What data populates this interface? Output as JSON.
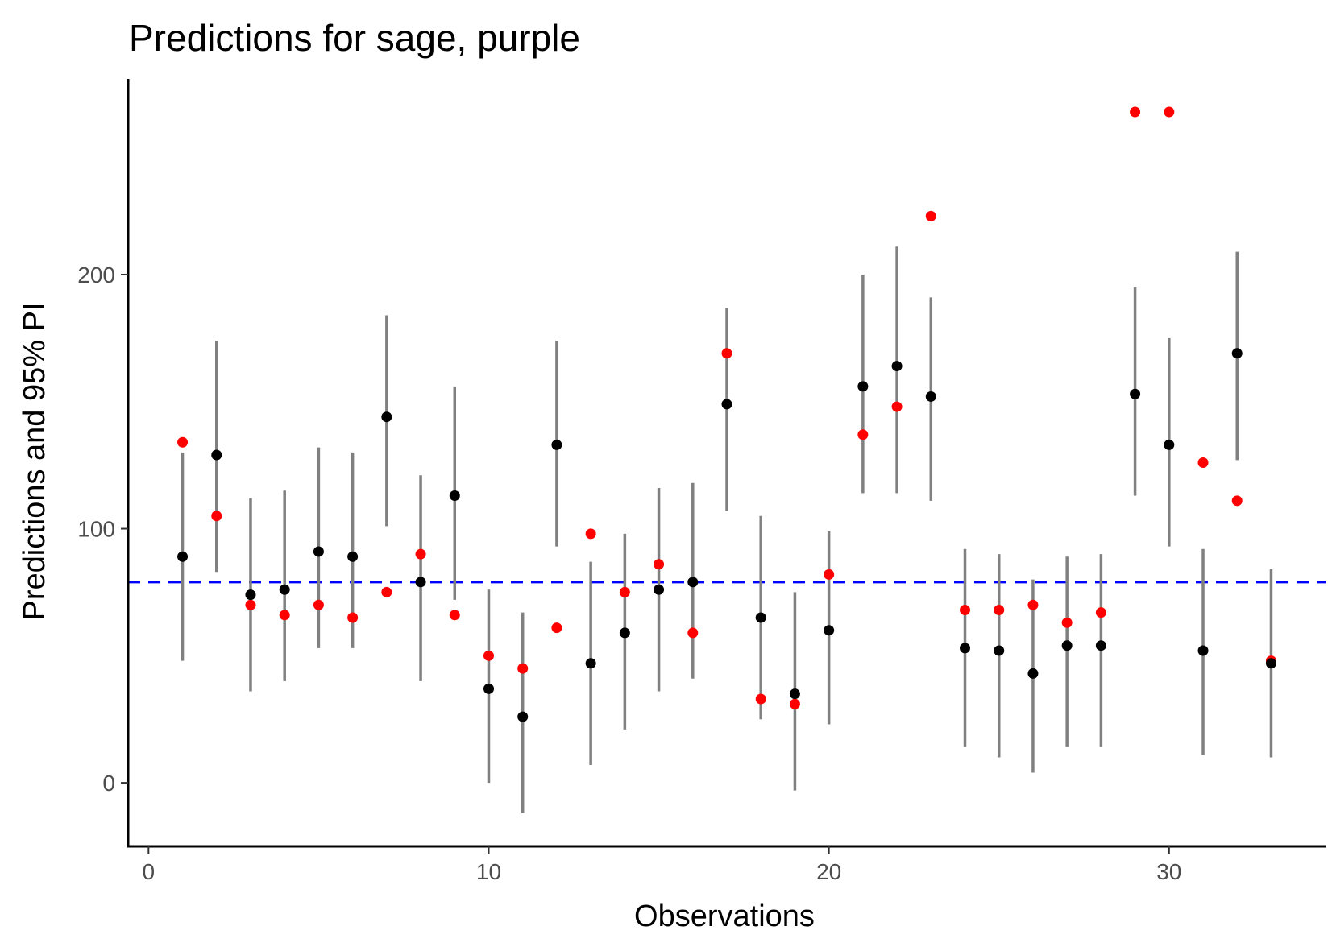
{
  "chart_data": {
    "type": "scatter",
    "title": "Predictions for sage, purple",
    "xlabel": "Observations",
    "ylabel": "Predictions and 95% PI",
    "xlim": [
      -0.6,
      34.6
    ],
    "ylim": [
      -25,
      277
    ],
    "x_ticks": [
      0,
      10,
      20,
      30
    ],
    "y_ticks": [
      0,
      100,
      200
    ],
    "grid": false,
    "reference_line": {
      "y": 79,
      "style": "dashed",
      "color": "#0000ff"
    },
    "colors": {
      "prediction": "#000000",
      "interval": "#808080",
      "observed": "#ff0000",
      "reference": "#0000ff",
      "axis": "#000000",
      "tick_label": "#4d4d4d"
    },
    "series": [
      {
        "kind": "prediction_interval",
        "points": [
          {
            "x": 1,
            "pred": 89,
            "lower": 48,
            "upper": 130
          },
          {
            "x": 2,
            "pred": 129,
            "lower": 83,
            "upper": 174
          },
          {
            "x": 3,
            "pred": 74,
            "lower": 36,
            "upper": 112
          },
          {
            "x": 4,
            "pred": 76,
            "lower": 40,
            "upper": 115
          },
          {
            "x": 5,
            "pred": 91,
            "lower": 53,
            "upper": 132
          },
          {
            "x": 6,
            "pred": 89,
            "lower": 53,
            "upper": 130
          },
          {
            "x": 7,
            "pred": 144,
            "lower": 101,
            "upper": 184
          },
          {
            "x": 8,
            "pred": 79,
            "lower": 40,
            "upper": 121
          },
          {
            "x": 9,
            "pred": 113,
            "lower": 72,
            "upper": 156
          },
          {
            "x": 10,
            "pred": 37,
            "lower": 0,
            "upper": 76
          },
          {
            "x": 11,
            "pred": 26,
            "lower": -12,
            "upper": 67
          },
          {
            "x": 12,
            "pred": 133,
            "lower": 93,
            "upper": 174
          },
          {
            "x": 13,
            "pred": 47,
            "lower": 7,
            "upper": 87
          },
          {
            "x": 14,
            "pred": 59,
            "lower": 21,
            "upper": 98
          },
          {
            "x": 15,
            "pred": 76,
            "lower": 36,
            "upper": 116
          },
          {
            "x": 16,
            "pred": 79,
            "lower": 41,
            "upper": 118
          },
          {
            "x": 17,
            "pred": 149,
            "lower": 107,
            "upper": 187
          },
          {
            "x": 18,
            "pred": 65,
            "lower": 25,
            "upper": 105
          },
          {
            "x": 19,
            "pred": 35,
            "lower": -3,
            "upper": 75
          },
          {
            "x": 20,
            "pred": 60,
            "lower": 23,
            "upper": 99
          },
          {
            "x": 21,
            "pred": 156,
            "lower": 114,
            "upper": 200
          },
          {
            "x": 22,
            "pred": 164,
            "lower": 114,
            "upper": 211
          },
          {
            "x": 23,
            "pred": 152,
            "lower": 111,
            "upper": 191
          },
          {
            "x": 24,
            "pred": 53,
            "lower": 14,
            "upper": 92
          },
          {
            "x": 25,
            "pred": 52,
            "lower": 10,
            "upper": 90
          },
          {
            "x": 26,
            "pred": 43,
            "lower": 4,
            "upper": 80
          },
          {
            "x": 27,
            "pred": 54,
            "lower": 14,
            "upper": 89
          },
          {
            "x": 28,
            "pred": 54,
            "lower": 14,
            "upper": 90
          },
          {
            "x": 29,
            "pred": 153,
            "lower": 113,
            "upper": 195
          },
          {
            "x": 30,
            "pred": 133,
            "lower": 93,
            "upper": 175
          },
          {
            "x": 31,
            "pred": 52,
            "lower": 11,
            "upper": 92
          },
          {
            "x": 32,
            "pred": 169,
            "lower": 127,
            "upper": 209
          },
          {
            "x": 33,
            "pred": 47,
            "lower": 10,
            "upper": 84
          }
        ]
      },
      {
        "kind": "observed",
        "points": [
          {
            "x": 1,
            "y": 134
          },
          {
            "x": 2,
            "y": 105
          },
          {
            "x": 3,
            "y": 70
          },
          {
            "x": 4,
            "y": 66
          },
          {
            "x": 5,
            "y": 70
          },
          {
            "x": 6,
            "y": 65
          },
          {
            "x": 7,
            "y": 75
          },
          {
            "x": 8,
            "y": 90
          },
          {
            "x": 9,
            "y": 66
          },
          {
            "x": 10,
            "y": 50
          },
          {
            "x": 11,
            "y": 45
          },
          {
            "x": 12,
            "y": 61
          },
          {
            "x": 13,
            "y": 98
          },
          {
            "x": 14,
            "y": 75
          },
          {
            "x": 15,
            "y": 86
          },
          {
            "x": 16,
            "y": 59
          },
          {
            "x": 17,
            "y": 169
          },
          {
            "x": 18,
            "y": 33
          },
          {
            "x": 19,
            "y": 31
          },
          {
            "x": 20,
            "y": 82
          },
          {
            "x": 21,
            "y": 137
          },
          {
            "x": 22,
            "y": 148
          },
          {
            "x": 23,
            "y": 223
          },
          {
            "x": 24,
            "y": 68
          },
          {
            "x": 25,
            "y": 68
          },
          {
            "x": 26,
            "y": 70
          },
          {
            "x": 27,
            "y": 63
          },
          {
            "x": 28,
            "y": 67
          },
          {
            "x": 29,
            "y": 264
          },
          {
            "x": 30,
            "y": 264
          },
          {
            "x": 31,
            "y": 126
          },
          {
            "x": 32,
            "y": 111
          },
          {
            "x": 33,
            "y": 48
          }
        ]
      }
    ]
  }
}
